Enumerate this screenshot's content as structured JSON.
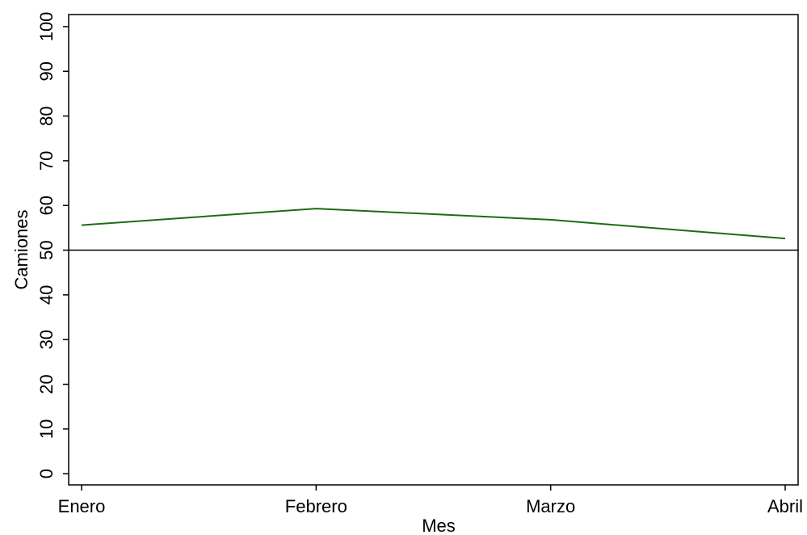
{
  "chart_data": {
    "type": "line",
    "categories": [
      "Enero",
      "Febrero",
      "Marzo",
      "Abril"
    ],
    "series": [
      {
        "color": "#1e6b14",
        "values": [
          55.6,
          59.3,
          56.8,
          52.6
        ]
      }
    ],
    "x_label": "Mes",
    "y_label": "Camiones",
    "ylim": [
      -2.5,
      102.7
    ],
    "yticks": [
      0,
      10,
      20,
      30,
      40,
      50,
      60,
      70,
      80,
      90,
      100
    ],
    "reference_line": 50
  }
}
